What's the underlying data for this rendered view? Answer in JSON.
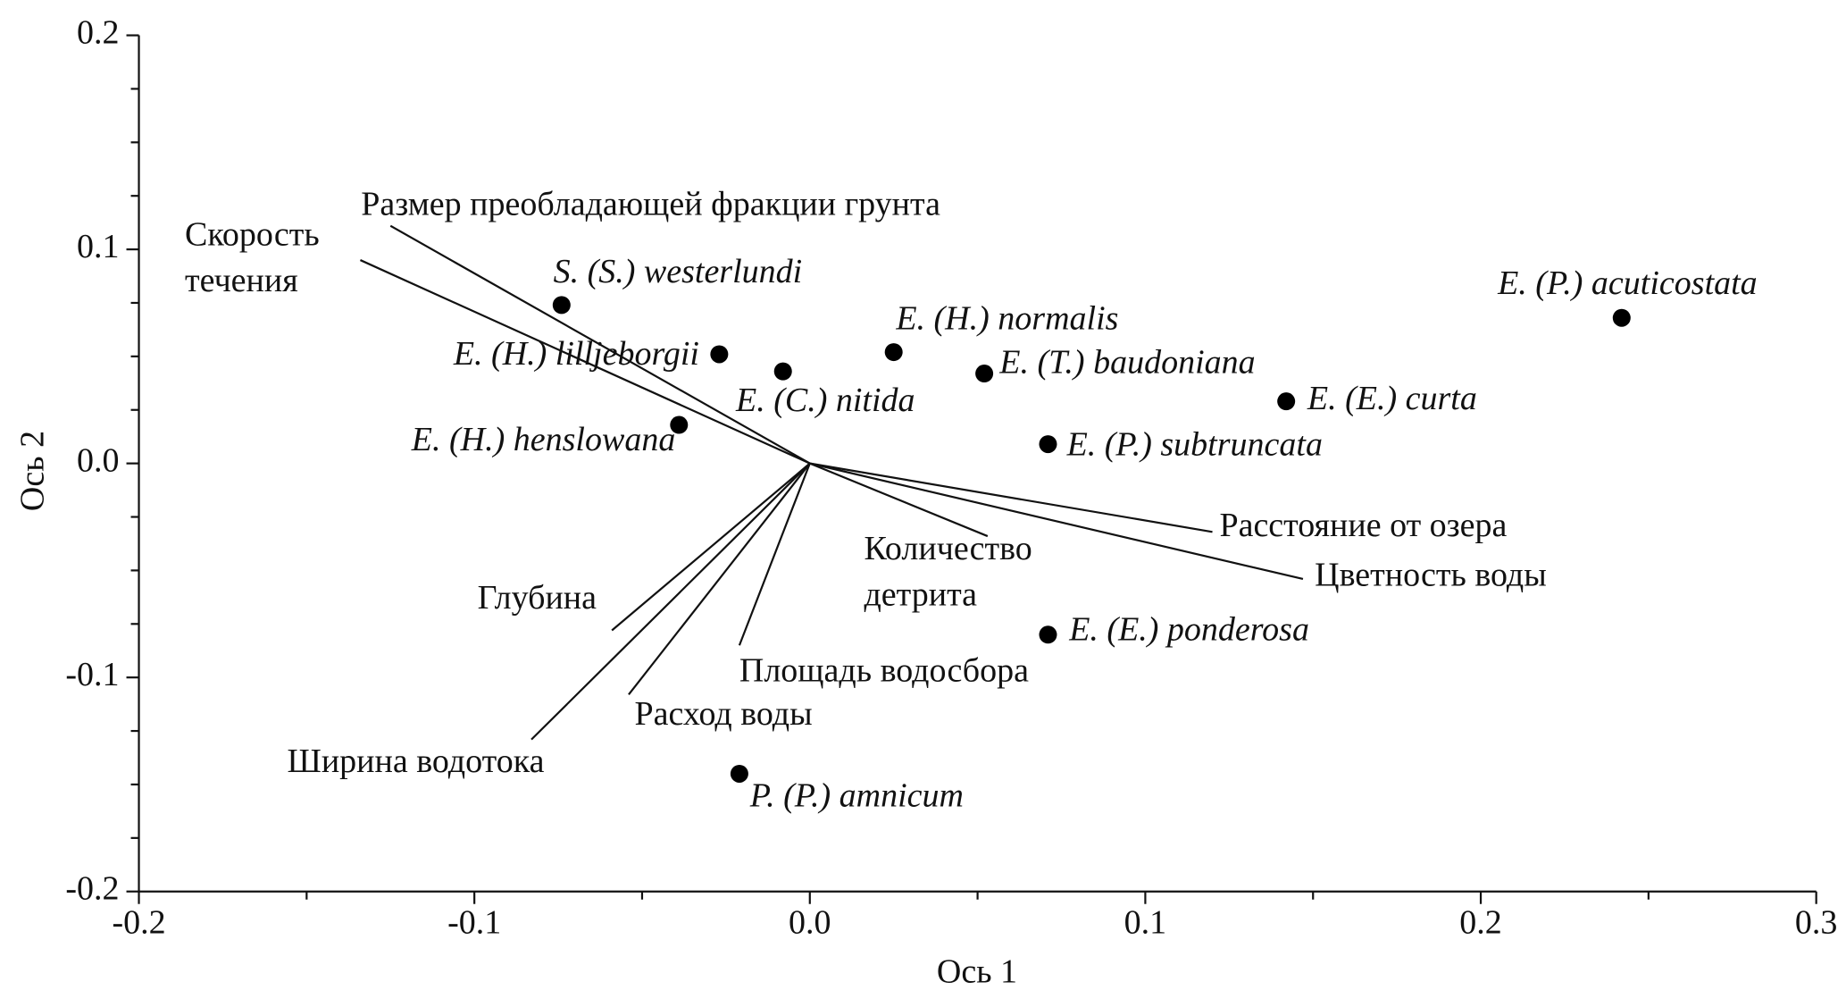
{
  "chart_data": {
    "type": "scatter",
    "xlabel": "Ось 1",
    "ylabel": "Ось 2",
    "xlim": [
      -0.2,
      0.3
    ],
    "ylim": [
      -0.2,
      0.2
    ],
    "xticks": [
      -0.2,
      -0.1,
      {
        "value": 0,
        "label": "0.0"
      },
      0.1,
      0.2,
      0.3
    ],
    "yticks": [
      -0.2,
      -0.1,
      {
        "value": 0,
        "label": "0.0"
      },
      0.1,
      0.2
    ],
    "xminorticks": [
      -0.15,
      -0.05,
      0.05,
      0.15,
      0.25
    ],
    "yminorticks": [
      -0.175,
      -0.15,
      -0.125,
      -0.075,
      -0.05,
      -0.025,
      0.025,
      0.05,
      0.075,
      0.125,
      0.15,
      0.175
    ],
    "color": "#000000",
    "points": [
      {
        "label": "S. (S.) westerlundi",
        "x": -0.074,
        "y": 0.074
      },
      {
        "label": "E. (H.) lilljeborgii",
        "x": -0.027,
        "y": 0.051
      },
      {
        "label": "E. (C.) nitida",
        "x": -0.008,
        "y": 0.043
      },
      {
        "label": "E. (H.) normalis",
        "x": 0.025,
        "y": 0.052
      },
      {
        "label": "E. (T.) baudoniana",
        "x": 0.052,
        "y": 0.042
      },
      {
        "label": "E. (E.) curta",
        "x": 0.142,
        "y": 0.029
      },
      {
        "label": "E. (P.) acuticostata",
        "x": 0.242,
        "y": 0.068
      },
      {
        "label": "E. (H.) henslowana",
        "x": -0.039,
        "y": 0.018
      },
      {
        "label": "E. (P.) subtruncata",
        "x": 0.071,
        "y": 0.009
      },
      {
        "label": "E. (E.) ponderosa",
        "x": 0.071,
        "y": -0.08
      },
      {
        "label": "P. (P.) amnicum",
        "x": -0.021,
        "y": -0.145
      }
    ],
    "vectors": [
      {
        "label": [
          "Размер преобладающей фракции грунта"
        ],
        "x": -0.125,
        "y": 0.111
      },
      {
        "label": [
          "Скорость",
          "течения"
        ],
        "x": -0.134,
        "y": 0.095
      },
      {
        "label": [
          "Расстояние от озера"
        ],
        "x": 0.12,
        "y": -0.032
      },
      {
        "label": [
          "Цветность воды"
        ],
        "x": 0.147,
        "y": -0.054
      },
      {
        "label": [
          "Количество",
          "детрита"
        ],
        "x": 0.053,
        "y": -0.034
      },
      {
        "label": [
          "Глубина"
        ],
        "x": -0.059,
        "y": -0.078
      },
      {
        "label": [
          "Ширина водотока"
        ],
        "x": -0.083,
        "y": -0.129
      },
      {
        "label": [
          "Расход воды"
        ],
        "x": -0.054,
        "y": -0.108
      },
      {
        "label": [
          "Площадь водосбора"
        ],
        "x": -0.021,
        "y": -0.085
      }
    ]
  }
}
